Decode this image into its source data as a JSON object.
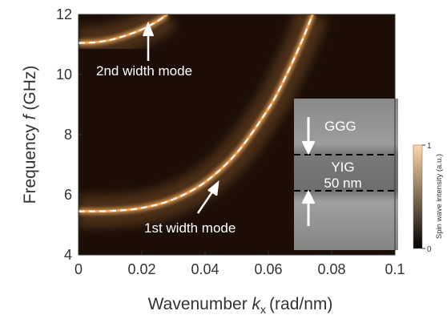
{
  "chart_data": {
    "type": "line",
    "x_label": {
      "text": "Wavenumber",
      "symbol": "k",
      "subscript": "x",
      "unit": "(rad/nm)"
    },
    "y_label": {
      "text": "Frequency",
      "symbol": "f",
      "unit": "(GHz)"
    },
    "xlim": [
      0,
      0.1
    ],
    "xticks": [
      0,
      0.02,
      0.04,
      0.06,
      0.08,
      0.1
    ],
    "ylim": [
      4,
      12
    ],
    "yticks": [
      4,
      6,
      8,
      10,
      12
    ],
    "series": [
      {
        "name": "1st width mode",
        "color": "#f2a75a",
        "x": [
          0,
          0.01,
          0.02,
          0.03,
          0.04,
          0.05,
          0.06,
          0.065,
          0.07,
          0.074
        ],
        "values": [
          5.45,
          5.46,
          5.56,
          5.85,
          6.42,
          7.39,
          8.86,
          9.83,
          10.97,
          12
        ]
      },
      {
        "name": "2nd width mode",
        "color": "#f2a75a",
        "x": [
          0,
          0.005,
          0.01,
          0.015,
          0.02,
          0.025,
          0.028
        ],
        "values": [
          11.05,
          11.07,
          11.15,
          11.3,
          11.5,
          11.78,
          12
        ]
      }
    ],
    "inset": {
      "top_layer": "GGG",
      "film": "YIG",
      "thickness": "50 nm"
    },
    "colorbar": {
      "label": "Spin wave intensity (a.u.)",
      "ticks": [
        0,
        1
      ],
      "colors": [
        "#000000",
        "#ffd9a8"
      ]
    }
  }
}
